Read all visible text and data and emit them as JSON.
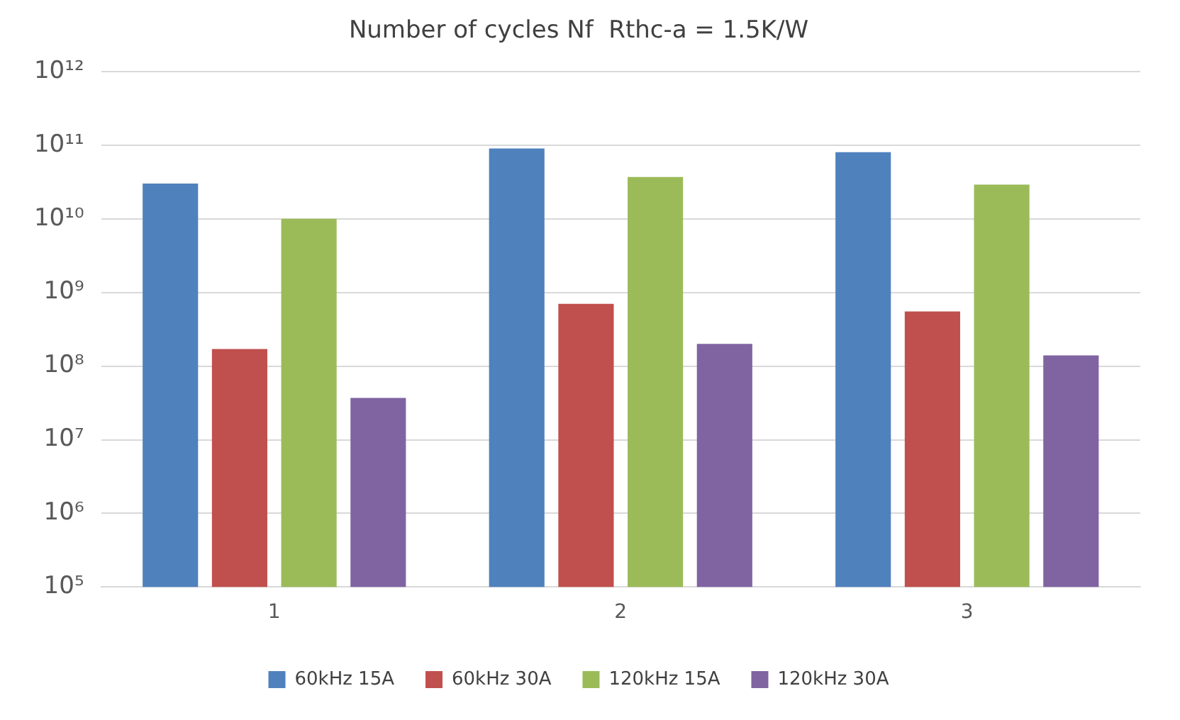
{
  "chart_data": {
    "type": "bar",
    "title": "Number of cycles Nf  Rthc-a = 1.5K/W",
    "categories": [
      "1",
      "2",
      "3"
    ],
    "series": [
      {
        "name": "60kHz 15A",
        "color": "#4f81bd",
        "values": [
          30000000000,
          90000000000,
          80000000000
        ]
      },
      {
        "name": "60kHz 30A",
        "color": "#c0504d",
        "values": [
          170000000,
          700000000,
          550000000
        ]
      },
      {
        "name": "120kHz 15A",
        "color": "#9bbb59",
        "values": [
          10000000000,
          37000000000,
          29000000000
        ]
      },
      {
        "name": "120kHz 30A",
        "color": "#8064a2",
        "values": [
          37000000,
          200000000,
          140000000
        ]
      }
    ],
    "log": "y",
    "ylim": [
      100000,
      1000000000000
    ],
    "yticks": [
      {
        "value": 100000,
        "label": "10⁵"
      },
      {
        "value": 1000000,
        "label": "10⁶"
      },
      {
        "value": 10000000,
        "label": "10⁷"
      },
      {
        "value": 100000000,
        "label": "10⁸"
      },
      {
        "value": 1000000000,
        "label": "10⁹"
      },
      {
        "value": 10000000000,
        "label": "10¹⁰"
      },
      {
        "value": 100000000000,
        "label": "10¹¹"
      },
      {
        "value": 1000000000000,
        "label": "10¹²"
      }
    ],
    "grid": "y",
    "legend": "bottom"
  }
}
